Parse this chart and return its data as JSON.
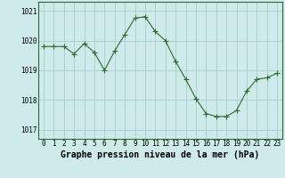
{
  "x": [
    0,
    1,
    2,
    3,
    4,
    5,
    6,
    7,
    8,
    9,
    10,
    11,
    12,
    13,
    14,
    15,
    16,
    17,
    18,
    19,
    20,
    21,
    22,
    23
  ],
  "y": [
    1019.8,
    1019.8,
    1019.8,
    1019.55,
    1019.9,
    1019.6,
    1019.0,
    1019.65,
    1020.2,
    1020.75,
    1020.8,
    1020.3,
    1020.0,
    1019.3,
    1018.7,
    1018.05,
    1017.55,
    1017.45,
    1017.45,
    1017.65,
    1018.3,
    1018.7,
    1018.75,
    1018.9
  ],
  "line_color": "#2d6a2d",
  "marker": "+",
  "marker_size": 4,
  "bg_color": "#ceeaea",
  "grid_color": "#a8cccc",
  "xlabel": "Graphe pression niveau de la mer (hPa)",
  "xlabel_fontsize": 7.0,
  "ylim": [
    1016.7,
    1021.3
  ],
  "xlim": [
    -0.5,
    23.5
  ],
  "yticks": [
    1017,
    1018,
    1019,
    1020,
    1021
  ],
  "xticks": [
    0,
    1,
    2,
    3,
    4,
    5,
    6,
    7,
    8,
    9,
    10,
    11,
    12,
    13,
    14,
    15,
    16,
    17,
    18,
    19,
    20,
    21,
    22,
    23
  ],
  "tick_fontsize": 5.5,
  "spine_color": "#2d6a2d",
  "line_width": 0.8
}
